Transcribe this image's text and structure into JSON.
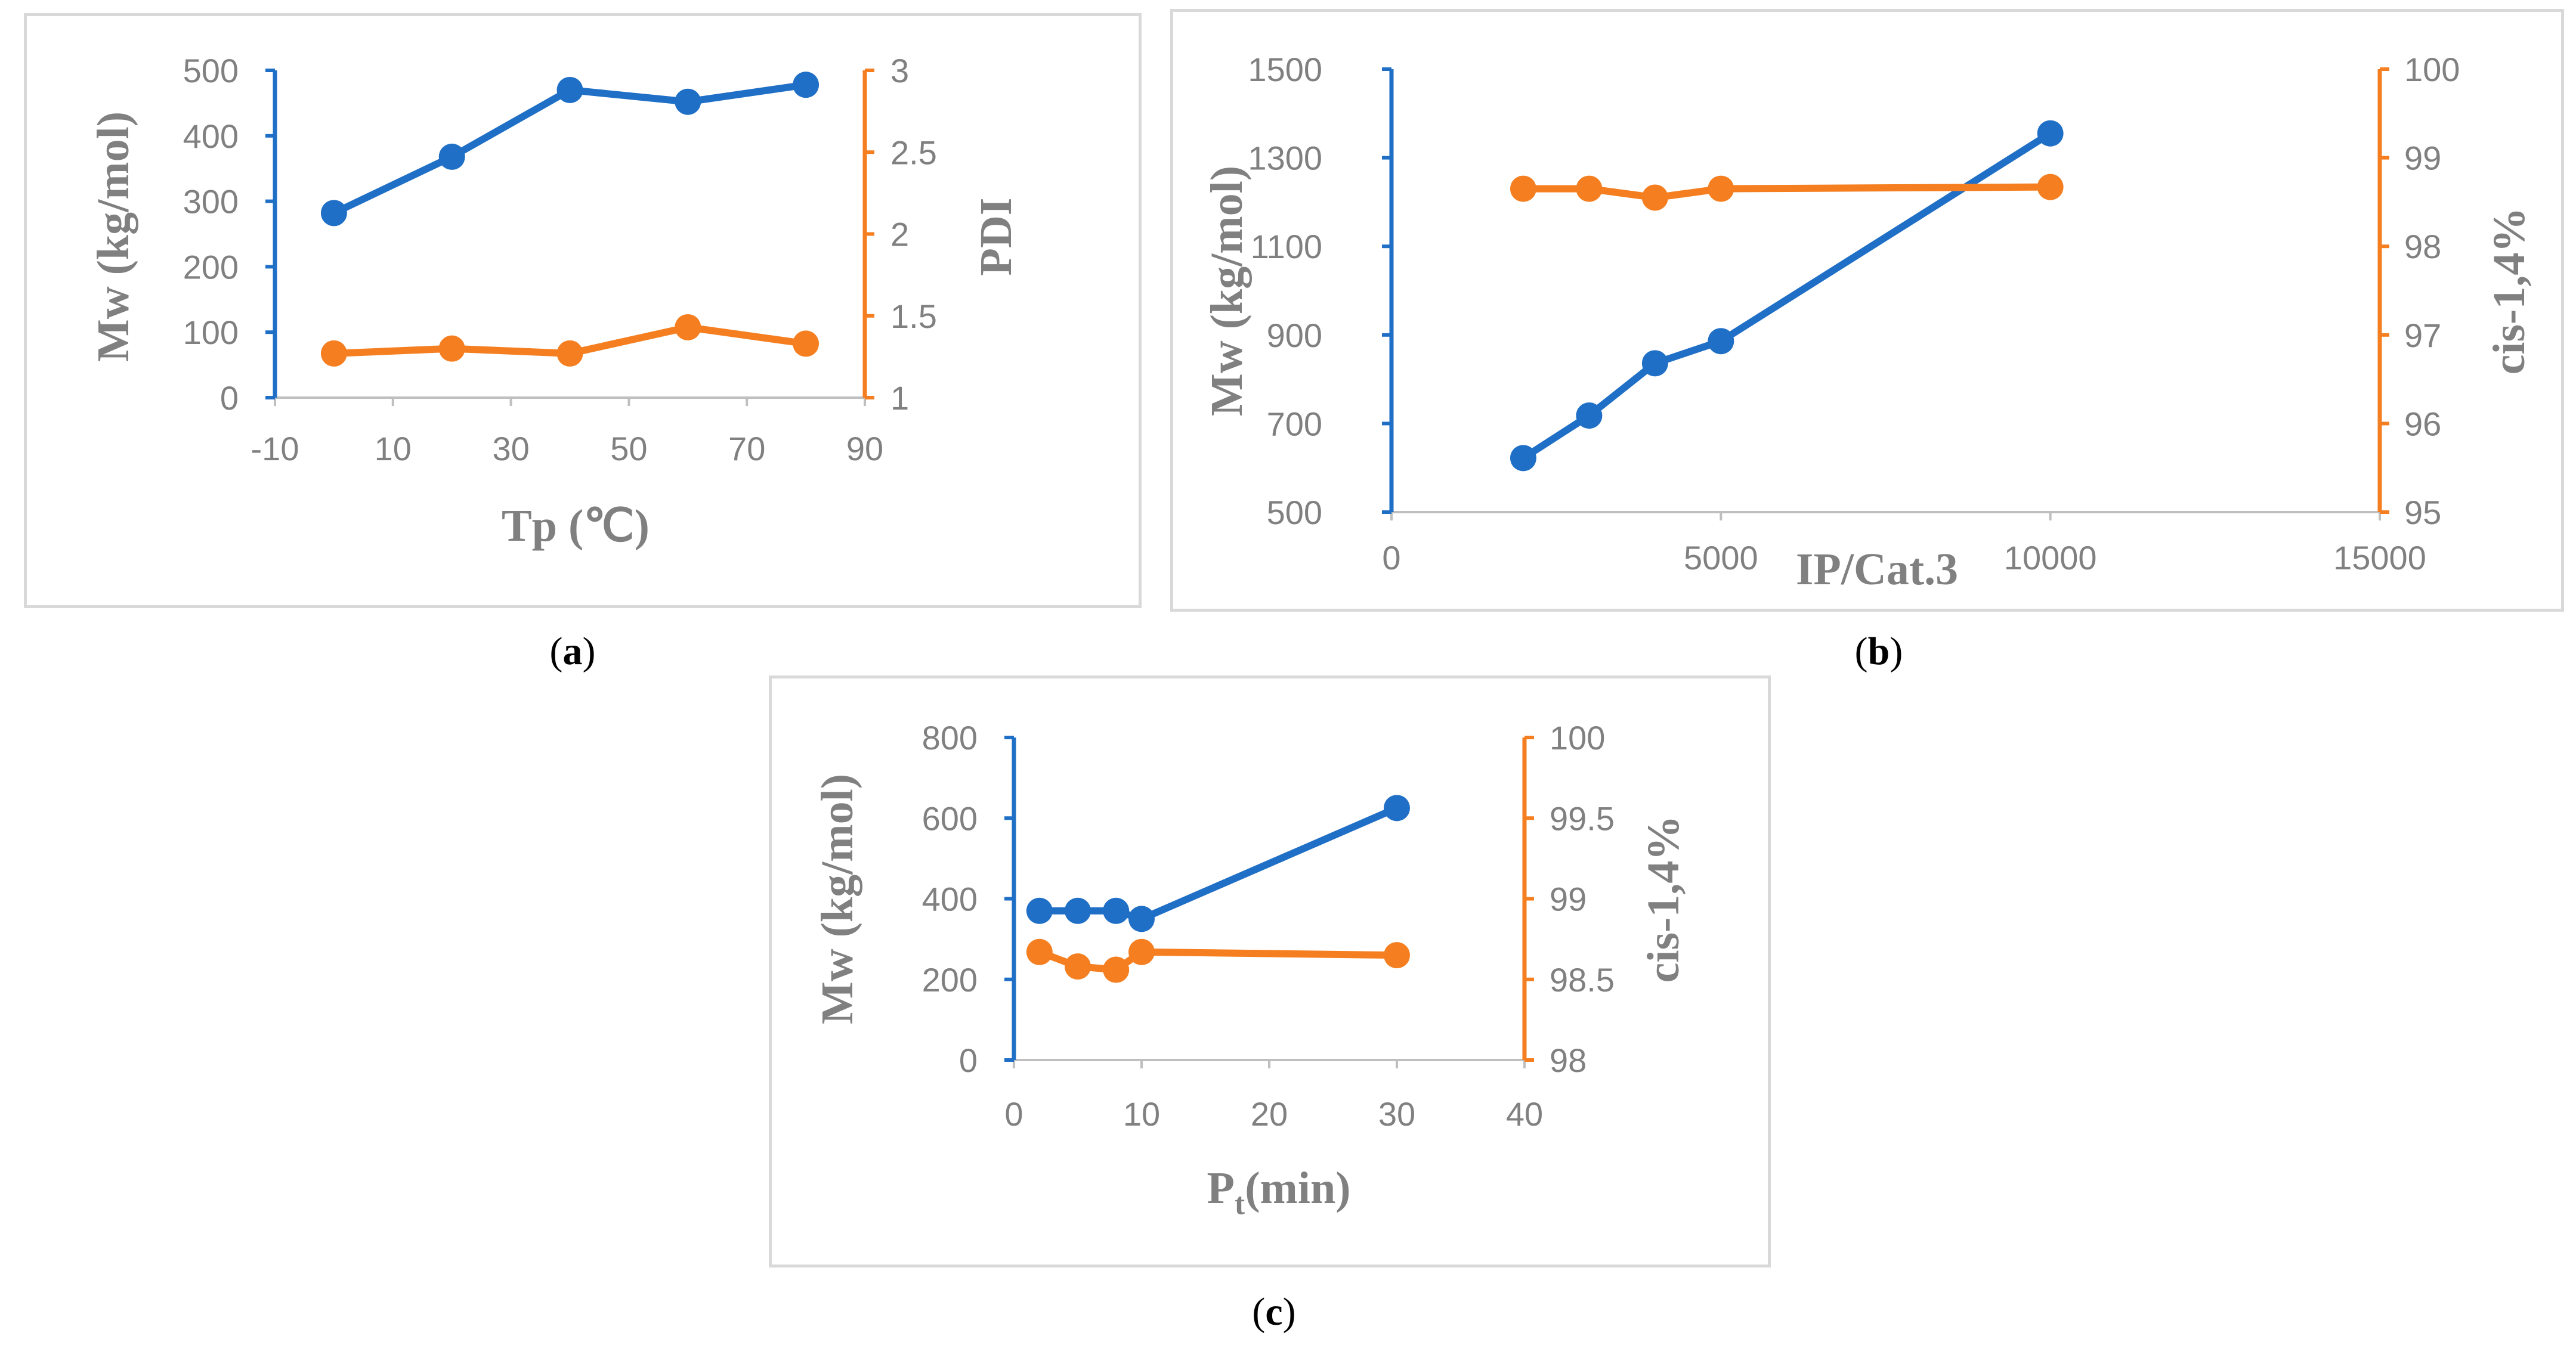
{
  "colors": {
    "mw": "#1f6fc6",
    "right": "#f57f20",
    "axis_text": "#808080",
    "title_text": "#808080",
    "frame": "#d9d9d9"
  },
  "captions": {
    "a": {
      "open": "(",
      "letter": "a",
      "close": ")"
    },
    "b": {
      "open": "(",
      "letter": "b",
      "close": ")"
    },
    "c": {
      "open": "(",
      "letter": "c",
      "close": ")"
    }
  },
  "chart_data": [
    {
      "id": "a",
      "type": "line",
      "xlabel": "Tp (℃)",
      "ylabel_left": "Mw (kg/mol)",
      "ylabel_right": "PDI",
      "xlim": [
        -10,
        90
      ],
      "xticks": [
        -10,
        10,
        30,
        50,
        70,
        90
      ],
      "ylim_left": [
        0,
        500
      ],
      "yticks_left": [
        0,
        100,
        200,
        300,
        400,
        500
      ],
      "ylim_right": [
        1,
        3
      ],
      "yticks_right": [
        1,
        1.5,
        2,
        2.5,
        3
      ],
      "yticklabels_right": [
        "1",
        "1.5",
        "2",
        "2.5",
        "3"
      ],
      "series": [
        {
          "axis": "left",
          "color": "#1f6fc6",
          "x": [
            0,
            20,
            40,
            60,
            80
          ],
          "y": [
            282,
            368,
            470,
            452,
            478
          ]
        },
        {
          "axis": "right",
          "color": "#f57f20",
          "x": [
            0,
            20,
            40,
            60,
            80
          ],
          "y": [
            1.27,
            1.3,
            1.27,
            1.43,
            1.33
          ]
        }
      ]
    },
    {
      "id": "b",
      "type": "line",
      "xlabel": "IP/Cat.3",
      "ylabel_left": "Mw (kg/mol)",
      "ylabel_right": "cis-1,4%",
      "xlim": [
        0,
        15000
      ],
      "xticks": [
        0,
        5000,
        10000,
        15000
      ],
      "ylim_left": [
        500,
        1500
      ],
      "yticks_left": [
        500,
        700,
        900,
        1100,
        1300,
        1500
      ],
      "ylim_right": [
        95,
        100
      ],
      "yticks_right": [
        95,
        96,
        97,
        98,
        99,
        100
      ],
      "yticklabels_right": [
        "95",
        "96",
        "97",
        "98",
        "99",
        "100"
      ],
      "series": [
        {
          "axis": "left",
          "color": "#1f6fc6",
          "x": [
            2000,
            3000,
            4000,
            5000,
            10000
          ],
          "y": [
            622,
            718,
            836,
            886,
            1355
          ]
        },
        {
          "axis": "right",
          "color": "#f57f20",
          "x": [
            2000,
            3000,
            4000,
            5000,
            10000
          ],
          "y": [
            98.65,
            98.65,
            98.55,
            98.65,
            98.67
          ]
        }
      ]
    },
    {
      "id": "c",
      "type": "line",
      "xlabel_main": "P",
      "xlabel_sub": "t",
      "xlabel_tail": "(min)",
      "ylabel_left": "Mw (kg/mol)",
      "ylabel_right": "cis-1,4%",
      "xlim": [
        0,
        40
      ],
      "xticks": [
        0,
        10,
        20,
        30,
        40
      ],
      "ylim_left": [
        0,
        800
      ],
      "yticks_left": [
        0,
        200,
        400,
        600,
        800
      ],
      "ylim_right": [
        98,
        100
      ],
      "yticks_right": [
        98,
        98.5,
        99,
        99.5,
        100
      ],
      "yticklabels_right": [
        "98",
        "98.5",
        "99",
        "99.5",
        "100"
      ],
      "series": [
        {
          "axis": "left",
          "color": "#1f6fc6",
          "x": [
            2,
            5,
            8,
            10,
            30
          ],
          "y": [
            370,
            370,
            370,
            350,
            625
          ]
        },
        {
          "axis": "right",
          "color": "#f57f20",
          "x": [
            2,
            5,
            8,
            10,
            30
          ],
          "y": [
            98.67,
            98.58,
            98.56,
            98.67,
            98.65
          ]
        }
      ]
    }
  ]
}
